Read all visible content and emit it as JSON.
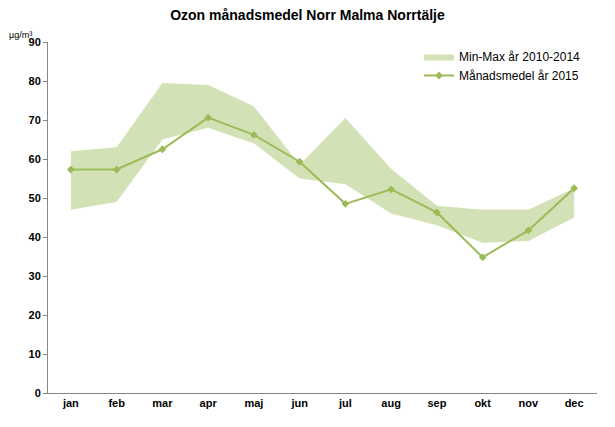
{
  "chart_data": {
    "type": "line",
    "title": "Ozon månadsmedel Norr Malma Norrtälje",
    "y_label": "µg/m³",
    "categories": [
      "jan",
      "feb",
      "mar",
      "apr",
      "maj",
      "jun",
      "jul",
      "aug",
      "sep",
      "okt",
      "nov",
      "dec"
    ],
    "series": [
      {
        "name": "Min-Max år 2010-2014",
        "type": "area",
        "color": "#d3e2b6",
        "min": [
          47,
          49,
          65,
          68,
          64,
          55,
          53.5,
          46,
          43,
          38.5,
          39,
          45
        ],
        "max": [
          62,
          63,
          79.5,
          79,
          73.5,
          58.5,
          70.5,
          57.5,
          48,
          47,
          47,
          52.5
        ]
      },
      {
        "name": "Månadsmedel år 2015",
        "type": "line",
        "color": "#9bbb59",
        "marker": "diamond",
        "values": [
          57.3,
          57.3,
          62.5,
          70.6,
          66.2,
          59.3,
          48.5,
          52.2,
          46.3,
          34.8,
          41.7,
          52.5
        ]
      }
    ],
    "ylim": [
      0,
      90
    ],
    "yticks": [
      0,
      10,
      20,
      30,
      40,
      50,
      60,
      70,
      80,
      90
    ],
    "grid": false,
    "legend": "top right"
  }
}
